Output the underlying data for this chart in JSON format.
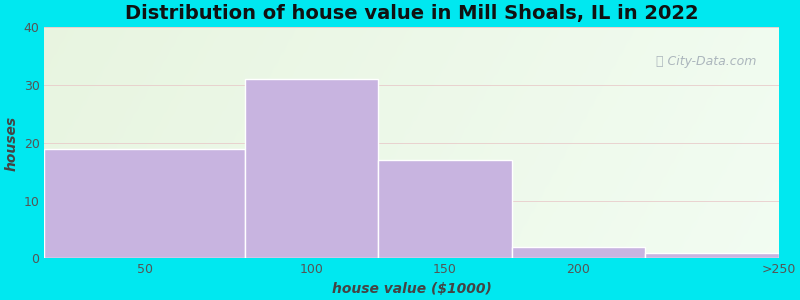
{
  "title": "Distribution of house value in Mill Shoals, IL in 2022",
  "xlabel": "house value ($1000)",
  "ylabel": "houses",
  "bar_values": [
    19,
    31,
    17,
    2,
    1
  ],
  "bin_edges": [
    0,
    75,
    125,
    175,
    225,
    275
  ],
  "xtick_positions": [
    37.5,
    100,
    150,
    200,
    275
  ],
  "xtick_labels": [
    "50",
    "100",
    "150",
    "200",
    ">250"
  ],
  "bar_color": "#c8b4e0",
  "bar_edgecolor": "#ffffff",
  "bar_linewidth": 1.0,
  "ylim": [
    0,
    40
  ],
  "yticks": [
    0,
    10,
    20,
    30,
    40
  ],
  "xlim": [
    0,
    275
  ],
  "background_outer": "#00e8f0",
  "title_fontsize": 14,
  "axis_label_fontsize": 10,
  "tick_fontsize": 9,
  "watermark_text": "City-Data.com",
  "grid_color": "#e8c8c8",
  "grid_alpha": 0.8
}
